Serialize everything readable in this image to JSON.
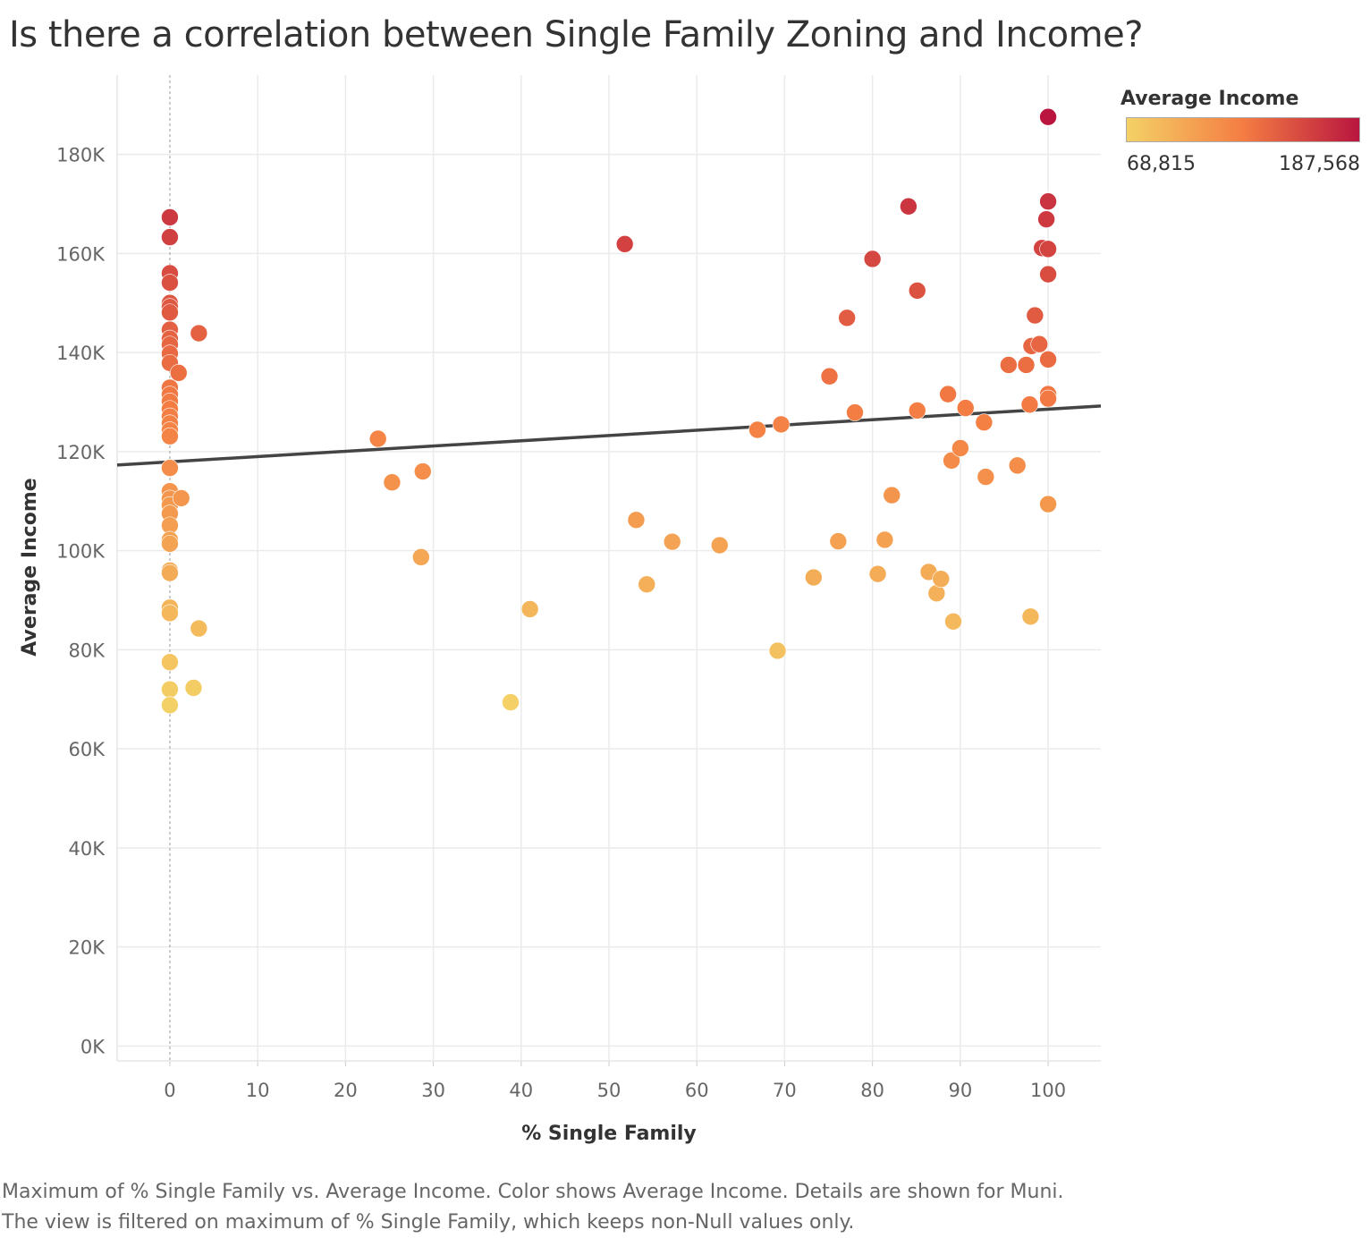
{
  "title": "Is there a correlation between Single Family Zoning and Income?",
  "legend": {
    "title": "Average Income",
    "min_label": "68,815",
    "max_label": "187,568",
    "color_low": "#f4d166",
    "color_mid": "#f47d43",
    "color_high": "#b9153f"
  },
  "caption": {
    "line1": "Maximum of % Single Family vs. Average Income.  Color shows Average Income.  Details are shown for Muni.",
    "line2": "The view is filtered on maximum of % Single Family, which keeps non-Null values only."
  },
  "chart_data": {
    "type": "scatter",
    "xlabel": "% Single Family",
    "ylabel": "Average Income",
    "xlim": [
      -6,
      106
    ],
    "ylim": [
      -3000,
      196000
    ],
    "x_ticks": [
      0,
      10,
      20,
      30,
      40,
      50,
      60,
      70,
      80,
      90,
      100
    ],
    "x_tick_labels": [
      "0",
      "10",
      "20",
      "30",
      "40",
      "50",
      "60",
      "70",
      "80",
      "90",
      "100"
    ],
    "y_ticks": [
      0,
      20000,
      40000,
      60000,
      80000,
      100000,
      120000,
      140000,
      160000,
      180000
    ],
    "y_tick_labels": [
      "0K",
      "20K",
      "40K",
      "60K",
      "80K",
      "100K",
      "120K",
      "140K",
      "160K",
      "180K"
    ],
    "grid": true,
    "zero_line_x": true,
    "color_range": [
      68815,
      187568
    ],
    "trend_line": {
      "x": [
        -6,
        106
      ],
      "y": [
        117300,
        129200
      ]
    },
    "points": [
      {
        "x": 0,
        "y": 167300
      },
      {
        "x": 0,
        "y": 163300
      },
      {
        "x": 0,
        "y": 156000
      },
      {
        "x": 0,
        "y": 154100
      },
      {
        "x": 0,
        "y": 150000
      },
      {
        "x": 0,
        "y": 149200
      },
      {
        "x": 0,
        "y": 148100
      },
      {
        "x": 0,
        "y": 144600
      },
      {
        "x": 0,
        "y": 142800
      },
      {
        "x": 0,
        "y": 141600
      },
      {
        "x": 0,
        "y": 139800
      },
      {
        "x": 0,
        "y": 137900
      },
      {
        "x": 0,
        "y": 132900
      },
      {
        "x": 0,
        "y": 131500
      },
      {
        "x": 0,
        "y": 130100
      },
      {
        "x": 0,
        "y": 128600
      },
      {
        "x": 0,
        "y": 127100
      },
      {
        "x": 0,
        "y": 125700
      },
      {
        "x": 0,
        "y": 124300
      },
      {
        "x": 0,
        "y": 123100
      },
      {
        "x": 0,
        "y": 116700
      },
      {
        "x": 0,
        "y": 112000
      },
      {
        "x": 0,
        "y": 110500
      },
      {
        "x": 0,
        "y": 109200
      },
      {
        "x": 0,
        "y": 107500
      },
      {
        "x": 0,
        "y": 105100
      },
      {
        "x": 0,
        "y": 102200
      },
      {
        "x": 0,
        "y": 101400
      },
      {
        "x": 0,
        "y": 96000
      },
      {
        "x": 0,
        "y": 95500
      },
      {
        "x": 0,
        "y": 88500
      },
      {
        "x": 0,
        "y": 87400
      },
      {
        "x": 0,
        "y": 77500
      },
      {
        "x": 0,
        "y": 72000
      },
      {
        "x": 0,
        "y": 68815
      },
      {
        "x": 3.3,
        "y": 143900
      },
      {
        "x": 1.0,
        "y": 135900
      },
      {
        "x": 1.3,
        "y": 110600
      },
      {
        "x": 3.3,
        "y": 84300
      },
      {
        "x": 2.7,
        "y": 72300
      },
      {
        "x": 23.7,
        "y": 122600
      },
      {
        "x": 25.3,
        "y": 113800
      },
      {
        "x": 28.8,
        "y": 116000
      },
      {
        "x": 28.6,
        "y": 98700
      },
      {
        "x": 38.8,
        "y": 69400
      },
      {
        "x": 41.0,
        "y": 88200
      },
      {
        "x": 51.8,
        "y": 161900
      },
      {
        "x": 53.1,
        "y": 106200
      },
      {
        "x": 54.3,
        "y": 93200
      },
      {
        "x": 57.2,
        "y": 101800
      },
      {
        "x": 62.6,
        "y": 101100
      },
      {
        "x": 66.9,
        "y": 124400
      },
      {
        "x": 69.6,
        "y": 125500
      },
      {
        "x": 69.2,
        "y": 79800
      },
      {
        "x": 73.3,
        "y": 94600
      },
      {
        "x": 75.1,
        "y": 135200
      },
      {
        "x": 77.1,
        "y": 147000
      },
      {
        "x": 76.1,
        "y": 101900
      },
      {
        "x": 78.0,
        "y": 127900
      },
      {
        "x": 80.0,
        "y": 158900
      },
      {
        "x": 80.6,
        "y": 95300
      },
      {
        "x": 81.4,
        "y": 102200
      },
      {
        "x": 82.2,
        "y": 111200
      },
      {
        "x": 84.1,
        "y": 169500
      },
      {
        "x": 85.1,
        "y": 152500
      },
      {
        "x": 85.1,
        "y": 128300
      },
      {
        "x": 86.4,
        "y": 95700
      },
      {
        "x": 87.3,
        "y": 91400
      },
      {
        "x": 87.8,
        "y": 94300
      },
      {
        "x": 88.6,
        "y": 131600
      },
      {
        "x": 89.0,
        "y": 118200
      },
      {
        "x": 89.2,
        "y": 85700
      },
      {
        "x": 90.0,
        "y": 120700
      },
      {
        "x": 90.6,
        "y": 128800
      },
      {
        "x": 92.7,
        "y": 125900
      },
      {
        "x": 92.9,
        "y": 114900
      },
      {
        "x": 95.5,
        "y": 137500
      },
      {
        "x": 96.5,
        "y": 117200
      },
      {
        "x": 97.5,
        "y": 137500
      },
      {
        "x": 97.9,
        "y": 129500
      },
      {
        "x": 98.1,
        "y": 141300
      },
      {
        "x": 98.0,
        "y": 86700
      },
      {
        "x": 98.5,
        "y": 147500
      },
      {
        "x": 99.0,
        "y": 141700
      },
      {
        "x": 99.3,
        "y": 161100
      },
      {
        "x": 99.8,
        "y": 166900
      },
      {
        "x": 100,
        "y": 187568
      },
      {
        "x": 100,
        "y": 170500
      },
      {
        "x": 100,
        "y": 160900
      },
      {
        "x": 100,
        "y": 155800
      },
      {
        "x": 100,
        "y": 138600
      },
      {
        "x": 100,
        "y": 131600
      },
      {
        "x": 100,
        "y": 130700
      },
      {
        "x": 100,
        "y": 109400
      }
    ]
  }
}
